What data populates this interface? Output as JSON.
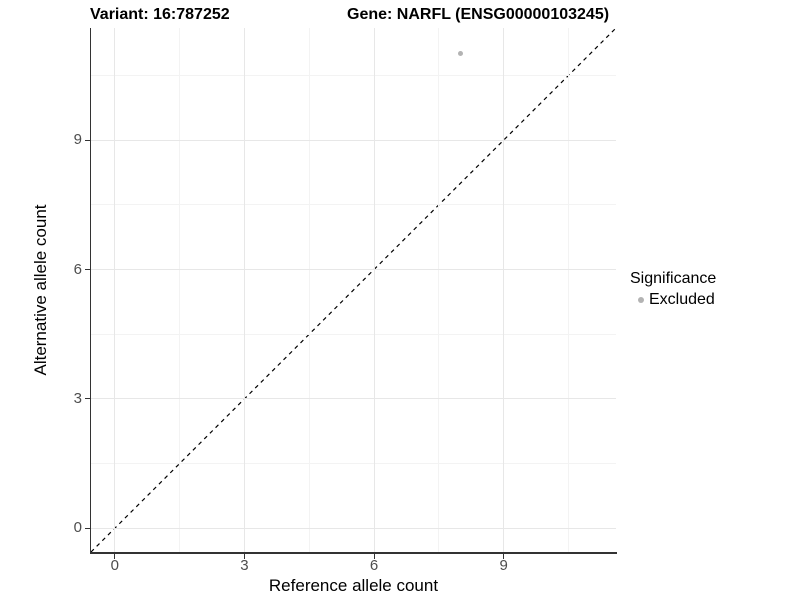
{
  "chart_data": {
    "type": "scatter",
    "title_left": "Variant: 16:787252",
    "title_right": "Gene: NARFL (ENSG00000103245)",
    "xlabel": "Reference allele count",
    "ylabel": "Alternative allele count",
    "xlim": [
      -0.55,
      11.6
    ],
    "ylim": [
      -0.55,
      11.6
    ],
    "xticks": [
      0,
      3,
      6,
      9
    ],
    "yticks": [
      0,
      3,
      6,
      9
    ],
    "minor_xticks": [
      1.5,
      4.5,
      7.5,
      10.5
    ],
    "minor_yticks": [
      1.5,
      4.5,
      7.5,
      10.5
    ],
    "grid": true,
    "series": [
      {
        "name": "Excluded",
        "marker": "circle",
        "color": "#b3b3b3",
        "points": [
          {
            "x": 8,
            "y": 11
          }
        ]
      }
    ],
    "reference_line": {
      "kind": "identity y = x",
      "style": "dashed",
      "color": "#000000"
    },
    "legend": {
      "title": "Significance",
      "position": "right",
      "items": [
        {
          "label": "Excluded",
          "color": "#b3b3b3",
          "marker": "circle"
        }
      ]
    },
    "colors": {
      "axis_line": "#333333",
      "grid_major": "#e7e7e7",
      "grid_minor": "#f3f3f3",
      "tick_label": "#4d4d4d",
      "background": "#ffffff"
    }
  }
}
